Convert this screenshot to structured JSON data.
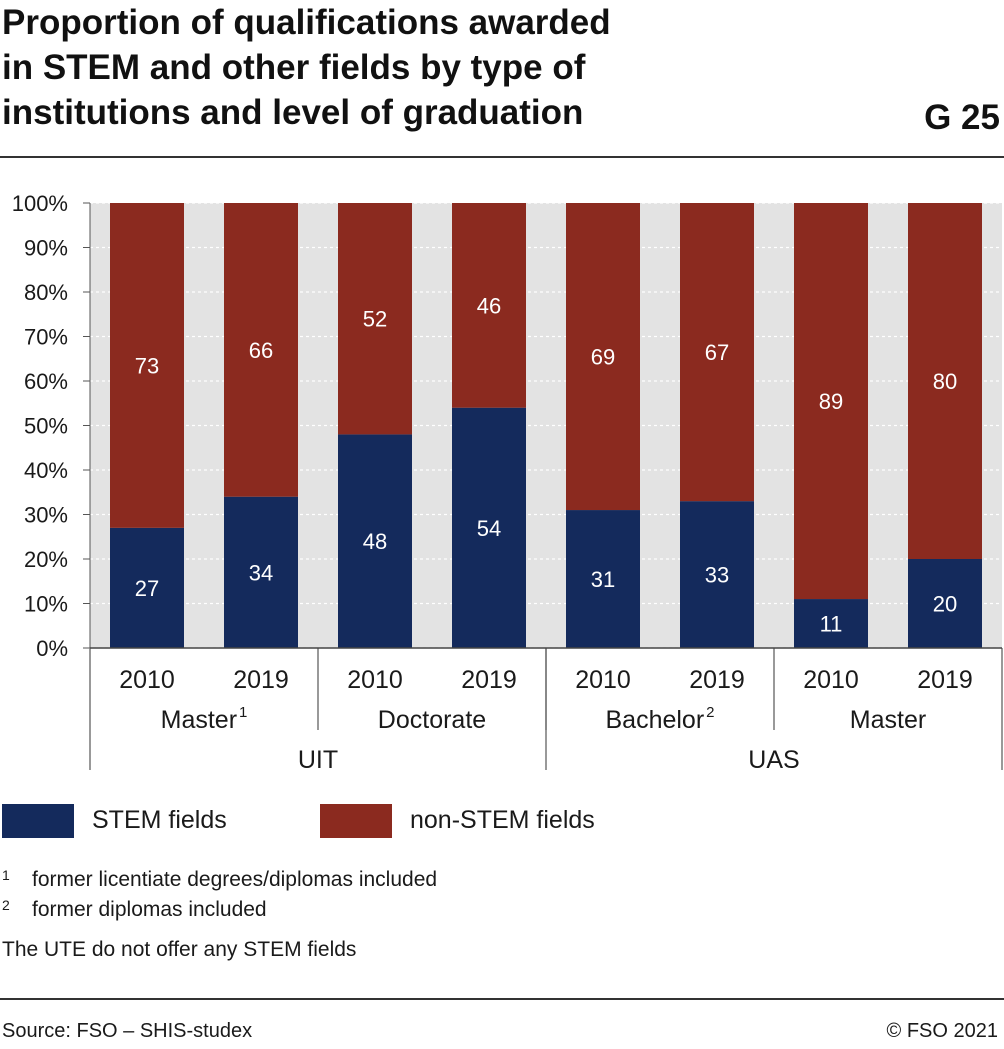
{
  "title_lines": [
    "Proportion of qualifications awarded",
    "in STEM and other fields by type of",
    "institutions and level of graduation"
  ],
  "chart_number": "G 25",
  "chart_data": {
    "type": "bar",
    "stacked": true,
    "percent": true,
    "ylim": [
      0,
      100
    ],
    "yticks": [
      "0%",
      "10%",
      "20%",
      "30%",
      "40%",
      "50%",
      "60%",
      "70%",
      "80%",
      "90%",
      "100%"
    ],
    "categories": [
      "2010",
      "2019",
      "2010",
      "2019",
      "2010",
      "2019",
      "2010",
      "2019"
    ],
    "level_groups": [
      {
        "label": "Master",
        "sup": "1",
        "span": 2
      },
      {
        "label": "Doctorate",
        "sup": "",
        "span": 2
      },
      {
        "label": "Bachelor",
        "sup": "2",
        "span": 2
      },
      {
        "label": "Master",
        "sup": "",
        "span": 2
      }
    ],
    "institution_groups": [
      {
        "label": "UIT",
        "span": 4
      },
      {
        "label": "UAS",
        "span": 4
      }
    ],
    "series": [
      {
        "name": "STEM fields",
        "color": "#142a5c",
        "values": [
          27,
          34,
          48,
          54,
          31,
          33,
          11,
          20
        ]
      },
      {
        "name": "non-STEM fields",
        "color": "#8b2a1f",
        "values": [
          73,
          66,
          52,
          46,
          69,
          67,
          89,
          80
        ]
      }
    ],
    "grid": true,
    "legend": "bottom"
  },
  "legend": {
    "stem": "STEM fields",
    "nonstem": "non-STEM fields"
  },
  "footnotes": [
    {
      "mark": "1",
      "text": "former licentiate degrees/diplomas included"
    },
    {
      "mark": "2",
      "text": "former diplomas included"
    }
  ],
  "note": "The UTE do not offer any STEM fields",
  "source": "Source: FSO – SHIS-studex",
  "copyright": "© FSO 2021"
}
